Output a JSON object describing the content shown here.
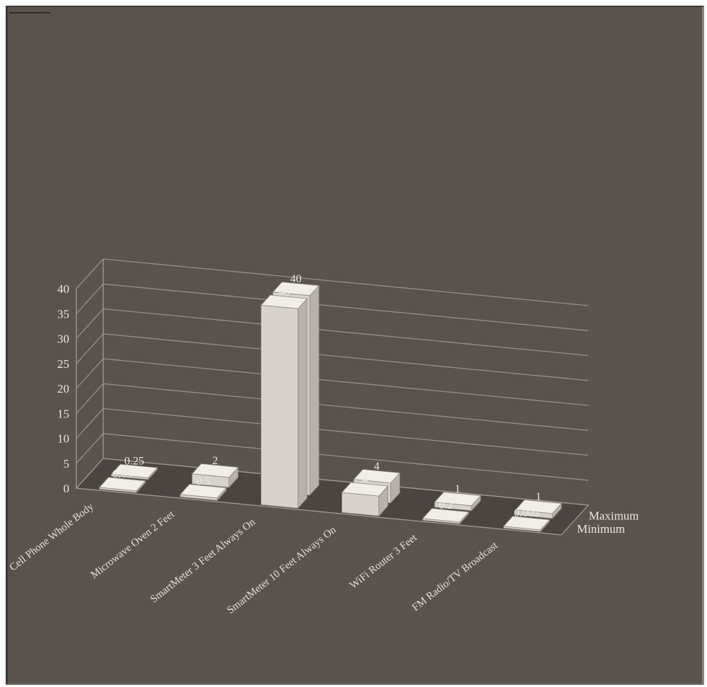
{
  "chart_data": {
    "type": "bar",
    "style": "3d-clustered-depth",
    "categories": [
      "Cell Phone Whole Body",
      "Microwave Oven 2 Feet",
      "SmartMeter 3 Feet Always On",
      "SmartMeter 10 Feet Always On",
      "WiFi Router 3 Feet",
      "FM Radio/TV Broadcast"
    ],
    "series": [
      {
        "name": "Minimum",
        "values": [
          0.05,
          0.5,
          40,
          4,
          0.2,
          0.005
        ]
      },
      {
        "name": "Maximum",
        "values": [
          0.25,
          2,
          40,
          4,
          1,
          1
        ]
      }
    ],
    "data_labels": {
      "Minimum": [
        "0.05",
        "0.5",
        "40",
        "4",
        "0.2",
        "0.005"
      ],
      "Maximum": [
        "0.25",
        "2",
        "40",
        "4",
        "1",
        "1"
      ]
    },
    "y_ticks": [
      "0",
      "5",
      "10",
      "15",
      "20",
      "25",
      "30",
      "35",
      "40"
    ],
    "ylim": [
      0,
      40
    ],
    "grid": true,
    "title": "",
    "xlabel": "",
    "ylabel": "",
    "colors": {
      "background": "#5a524d",
      "bar_front": "#d7d2cb",
      "bar_side": "#b7b1aa",
      "bar_top": "#f1ede7",
      "gridline": "#a29b95",
      "text": "#ece7e0"
    }
  }
}
